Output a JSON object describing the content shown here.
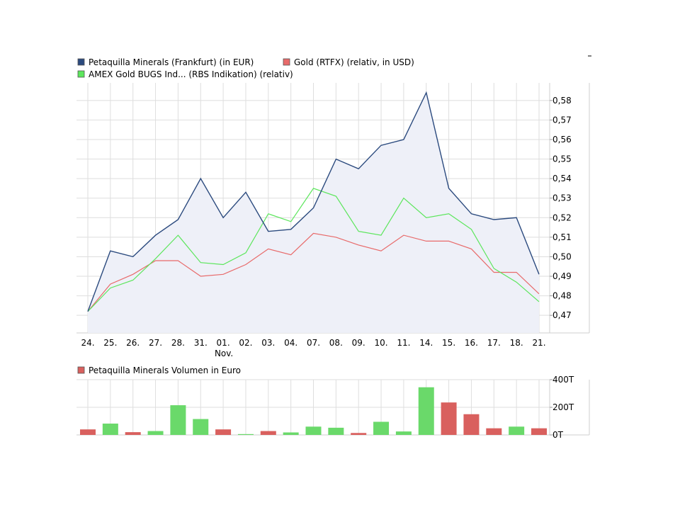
{
  "chart_data": [
    {
      "type": "line",
      "legend": [
        {
          "label": "Petaquilla Minerals (Frankfurt) (in EUR)",
          "color": "#2b4a7e"
        },
        {
          "label": "Gold (RTFX) (relativ, in USD)",
          "color": "#e86a6a"
        },
        {
          "label": "AMEX Gold BUGS Ind... (RBS Indikation) (relativ)",
          "color": "#5ce65c"
        }
      ],
      "categories": [
        "24.",
        "25.",
        "26.",
        "27.",
        "28.",
        "31.",
        "01.",
        "02.",
        "03.",
        "04.",
        "07.",
        "08.",
        "09.",
        "10.",
        "11.",
        "14.",
        "15.",
        "16.",
        "17.",
        "18.",
        "21."
      ],
      "month_label": "Nov.",
      "month_label_index": 6,
      "y_ticks": [
        "0,47",
        "0,48",
        "0,49",
        "0,50",
        "0,51",
        "0,52",
        "0,53",
        "0,54",
        "0,55",
        "0,56",
        "0,57",
        "0,58"
      ],
      "ylim": [
        0.461,
        0.589
      ],
      "series": [
        {
          "name": "Petaquilla Minerals (Frankfurt) (in EUR)",
          "color": "#2b4a7e",
          "fill": "#eef0f8",
          "values": [
            0.472,
            0.503,
            0.5,
            0.511,
            0.519,
            0.54,
            0.52,
            0.533,
            0.513,
            0.514,
            0.525,
            0.55,
            0.545,
            0.557,
            0.56,
            0.584,
            0.535,
            0.522,
            0.519,
            0.52,
            0.491
          ]
        },
        {
          "name": "Gold (RTFX) (relativ, in USD)",
          "color": "#e86a6a",
          "values": [
            0.472,
            0.486,
            0.491,
            0.498,
            0.498,
            0.49,
            0.491,
            0.496,
            0.504,
            0.501,
            0.512,
            0.51,
            0.506,
            0.503,
            0.511,
            0.508,
            0.508,
            0.504,
            0.492,
            0.492,
            0.481
          ]
        },
        {
          "name": "AMEX Gold BUGS Ind... (RBS Indikation) (relativ)",
          "color": "#5ce65c",
          "values": [
            0.472,
            0.484,
            0.488,
            0.499,
            0.511,
            0.497,
            0.496,
            0.502,
            0.522,
            0.518,
            0.535,
            0.531,
            0.513,
            0.511,
            0.53,
            0.52,
            0.522,
            0.514,
            0.494,
            0.487,
            0.477
          ]
        }
      ],
      "grid": true
    },
    {
      "type": "bar",
      "legend": [
        {
          "label": "Petaquilla Minerals Volumen in Euro",
          "color": "#d9605e"
        }
      ],
      "y_ticks": [
        "0T",
        "200T",
        "400T"
      ],
      "ylim": [
        0,
        400
      ],
      "values": [
        40,
        82,
        20,
        28,
        215,
        115,
        40,
        6,
        28,
        18,
        60,
        52,
        14,
        95,
        25,
        345,
        235,
        150,
        48,
        60,
        48
      ],
      "colors": [
        "red",
        "green",
        "red",
        "green",
        "green",
        "green",
        "red",
        "green",
        "red",
        "green",
        "green",
        "green",
        "red",
        "green",
        "green",
        "green",
        "red",
        "red",
        "red",
        "green",
        "red"
      ],
      "color_map": {
        "green": "#6ad96a",
        "red": "#d9605e"
      },
      "grid": true
    }
  ]
}
